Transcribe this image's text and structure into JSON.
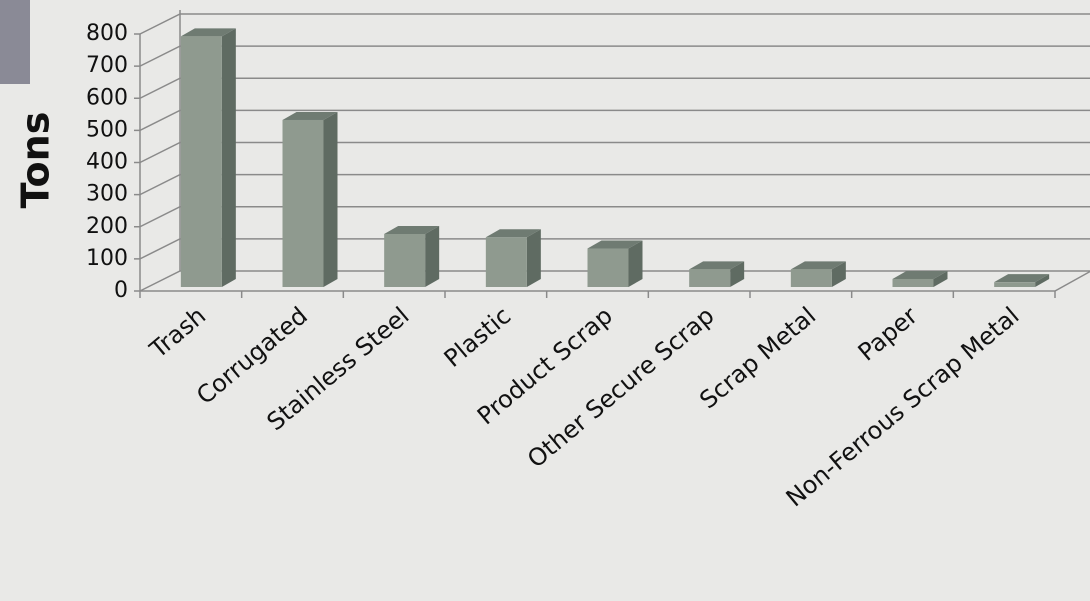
{
  "chart_data": {
    "type": "bar3d",
    "ylabel": "Tons",
    "categories": [
      "Trash",
      "Corrugated",
      "Stainless Steel",
      "Plastic",
      "Product Scrap",
      "Other Secure Scrap",
      "Scrap Metal",
      "Paper",
      "Non-Ferrous Scrap Metal"
    ],
    "values": [
      780,
      520,
      165,
      155,
      120,
      55,
      55,
      25,
      15
    ],
    "color": "#8f9a8f",
    "ylim": [
      0,
      800
    ],
    "yticks": [
      0,
      100,
      200,
      300,
      400,
      500,
      600,
      700,
      800
    ],
    "grid": true
  }
}
